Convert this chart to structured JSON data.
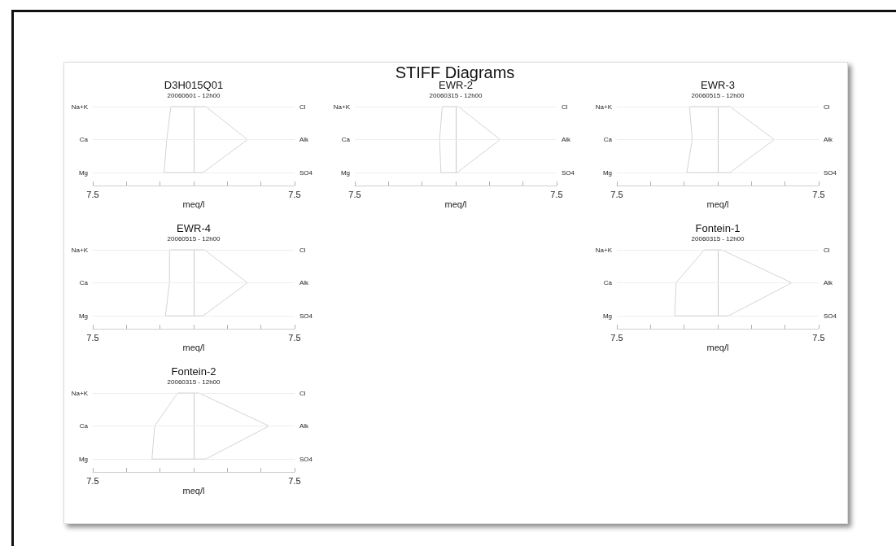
{
  "chart_data": [
    {
      "type": "other",
      "title": "STIFF Diagrams"
    },
    {
      "type": "line",
      "orientation": "horizontal",
      "title": "D3H015Q01",
      "subtitle": "20060601 - 12h00",
      "xlabel": "meq/l",
      "categories": [
        "Na+K",
        "Ca",
        "Mg"
      ],
      "y2_categories": [
        "Cl",
        "Alk",
        "SO4"
      ],
      "xlim": [
        -7.5,
        7.5
      ],
      "xticks": [
        {
          "value": -7.5,
          "label": "7.5"
        },
        {
          "value": -5,
          "label": null
        },
        {
          "value": -2.5,
          "label": null
        },
        {
          "value": 0,
          "label": null
        },
        {
          "value": 2.5,
          "label": null
        },
        {
          "value": 5,
          "label": null
        },
        {
          "value": 7.5,
          "label": "7.5"
        }
      ],
      "ref_lines": [
        {
          "axis": "x",
          "value": 0,
          "color": "#c8c8c8"
        },
        {
          "axis": "y",
          "value": "Na+K",
          "color": "#eeeeee"
        },
        {
          "axis": "y",
          "value": "Ca",
          "color": "#eeeeee"
        },
        {
          "axis": "y",
          "value": "Mg",
          "color": "#eeeeee"
        }
      ],
      "series": [
        {
          "color": "#d4d4d4",
          "values": [
            -1.7,
            -2.0,
            -2.2
          ]
        },
        {
          "color": "#d4d4d4",
          "values": [
            0.9,
            4.0,
            0.7
          ]
        }
      ]
    },
    {
      "type": "line",
      "orientation": "horizontal",
      "title": "EWR-2",
      "subtitle": "20060315 - 12h00",
      "xlabel": "meq/l",
      "categories": [
        "Na+K",
        "Ca",
        "Mg"
      ],
      "y2_categories": [
        "Cl",
        "Alk",
        "SO4"
      ],
      "xlim": [
        -7.5,
        7.5
      ],
      "xticks": [
        {
          "value": -7.5,
          "label": "7.5"
        },
        {
          "value": -5,
          "label": null
        },
        {
          "value": -2.5,
          "label": null
        },
        {
          "value": 0,
          "label": null
        },
        {
          "value": 2.5,
          "label": null
        },
        {
          "value": 5,
          "label": null
        },
        {
          "value": 7.5,
          "label": "7.5"
        }
      ],
      "ref_lines": [
        {
          "axis": "x",
          "value": 0,
          "color": "#c8c8c8"
        },
        {
          "axis": "y",
          "value": "Na+K",
          "color": "#eeeeee"
        },
        {
          "axis": "y",
          "value": "Ca",
          "color": "#eeeeee"
        },
        {
          "axis": "y",
          "value": "Mg",
          "color": "#eeeeee"
        }
      ],
      "series": [
        {
          "color": "#d4d4d4",
          "values": [
            -1.0,
            -1.2,
            -1.1
          ]
        },
        {
          "color": "#d4d4d4",
          "values": [
            0.2,
            3.3,
            0.1
          ]
        }
      ]
    },
    {
      "type": "line",
      "orientation": "horizontal",
      "title": "EWR-3",
      "subtitle": "20060515 - 12h00",
      "xlabel": "meq/l",
      "categories": [
        "Na+K",
        "Ca",
        "Mg"
      ],
      "y2_categories": [
        "Cl",
        "Alk",
        "SO4"
      ],
      "xlim": [
        -7.5,
        7.5
      ],
      "xticks": [
        {
          "value": -7.5,
          "label": "7.5"
        },
        {
          "value": -5,
          "label": null
        },
        {
          "value": -2.5,
          "label": null
        },
        {
          "value": 0,
          "label": null
        },
        {
          "value": 2.5,
          "label": null
        },
        {
          "value": 5,
          "label": null
        },
        {
          "value": 7.5,
          "label": "7.5"
        }
      ],
      "ref_lines": [
        {
          "axis": "x",
          "value": 0,
          "color": "#c8c8c8"
        },
        {
          "axis": "y",
          "value": "Na+K",
          "color": "#eeeeee"
        },
        {
          "axis": "y",
          "value": "Ca",
          "color": "#eeeeee"
        },
        {
          "axis": "y",
          "value": "Mg",
          "color": "#eeeeee"
        }
      ],
      "series": [
        {
          "color": "#d4d4d4",
          "values": [
            -2.1,
            -1.9,
            -2.3
          ]
        },
        {
          "color": "#d4d4d4",
          "values": [
            0.9,
            4.2,
            0.9
          ]
        }
      ]
    },
    {
      "type": "line",
      "orientation": "horizontal",
      "title": "EWR-4",
      "subtitle": "20060515 - 12h00",
      "xlabel": "meq/l",
      "categories": [
        "Na+K",
        "Ca",
        "Mg"
      ],
      "y2_categories": [
        "Cl",
        "Alk",
        "SO4"
      ],
      "xlim": [
        -7.5,
        7.5
      ],
      "xticks": [
        {
          "value": -7.5,
          "label": "7.5"
        },
        {
          "value": -5,
          "label": null
        },
        {
          "value": -2.5,
          "label": null
        },
        {
          "value": 0,
          "label": null
        },
        {
          "value": 2.5,
          "label": null
        },
        {
          "value": 5,
          "label": null
        },
        {
          "value": 7.5,
          "label": "7.5"
        }
      ],
      "ref_lines": [
        {
          "axis": "x",
          "value": 0,
          "color": "#c8c8c8"
        },
        {
          "axis": "y",
          "value": "Na+K",
          "color": "#eeeeee"
        },
        {
          "axis": "y",
          "value": "Ca",
          "color": "#eeeeee"
        },
        {
          "axis": "y",
          "value": "Mg",
          "color": "#eeeeee"
        }
      ],
      "series": [
        {
          "color": "#d4d4d4",
          "values": [
            -1.8,
            -1.8,
            -2.1
          ]
        },
        {
          "color": "#d4d4d4",
          "values": [
            0.8,
            4.0,
            0.7
          ]
        }
      ]
    },
    {
      "type": "line",
      "orientation": "horizontal",
      "title": "Fontein-1",
      "subtitle": "20060315 - 12h00",
      "xlabel": "meq/l",
      "categories": [
        "Na+K",
        "Ca",
        "Mg"
      ],
      "y2_categories": [
        "Cl",
        "Alk",
        "SO4"
      ],
      "xlim": [
        -7.5,
        7.5
      ],
      "xticks": [
        {
          "value": -7.5,
          "label": "7.5"
        },
        {
          "value": -5,
          "label": null
        },
        {
          "value": -2.5,
          "label": null
        },
        {
          "value": 0,
          "label": null
        },
        {
          "value": 2.5,
          "label": null
        },
        {
          "value": 5,
          "label": null
        },
        {
          "value": 7.5,
          "label": "7.5"
        }
      ],
      "ref_lines": [
        {
          "axis": "x",
          "value": 0,
          "color": "#c8c8c8"
        },
        {
          "axis": "y",
          "value": "Na+K",
          "color": "#eeeeee"
        },
        {
          "axis": "y",
          "value": "Ca",
          "color": "#eeeeee"
        },
        {
          "axis": "y",
          "value": "Mg",
          "color": "#eeeeee"
        }
      ],
      "series": [
        {
          "color": "#d4d4d4",
          "values": [
            -1.0,
            -3.1,
            -3.2
          ]
        },
        {
          "color": "#d4d4d4",
          "values": [
            0.3,
            5.5,
            0.8
          ]
        }
      ]
    },
    {
      "type": "line",
      "orientation": "horizontal",
      "title": "Fontein-2",
      "subtitle": "20060315 - 12h00",
      "xlabel": "meq/l",
      "categories": [
        "Na+K",
        "Ca",
        "Mg"
      ],
      "y2_categories": [
        "Cl",
        "Alk",
        "SO4"
      ],
      "xlim": [
        -7.5,
        7.5
      ],
      "xticks": [
        {
          "value": -7.5,
          "label": "7.5"
        },
        {
          "value": -5,
          "label": null
        },
        {
          "value": -2.5,
          "label": null
        },
        {
          "value": 0,
          "label": null
        },
        {
          "value": 2.5,
          "label": null
        },
        {
          "value": 5,
          "label": null
        },
        {
          "value": 7.5,
          "label": "7.5"
        }
      ],
      "ref_lines": [
        {
          "axis": "x",
          "value": 0,
          "color": "#c8c8c8"
        },
        {
          "axis": "y",
          "value": "Na+K",
          "color": "#eeeeee"
        },
        {
          "axis": "y",
          "value": "Ca",
          "color": "#eeeeee"
        },
        {
          "axis": "y",
          "value": "Mg",
          "color": "#eeeeee"
        }
      ],
      "series": [
        {
          "color": "#d4d4d4",
          "values": [
            -1.2,
            -2.9,
            -3.1
          ]
        },
        {
          "color": "#d4d4d4",
          "values": [
            0.4,
            5.6,
            0.9
          ]
        }
      ]
    }
  ]
}
